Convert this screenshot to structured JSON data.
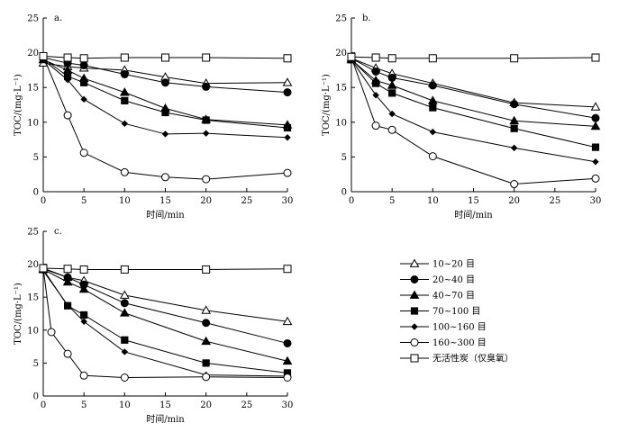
{
  "chart_data": [
    {
      "type": "line",
      "panel_label": "a.",
      "xlabel": "时间/min",
      "ylabel": "TOC/(mg·L⁻¹)",
      "xlim": [
        0,
        30
      ],
      "ylim": [
        0,
        25
      ],
      "xticks": [
        0,
        5,
        10,
        15,
        20,
        25,
        30
      ],
      "yticks": [
        0,
        5,
        10,
        15,
        20,
        25
      ],
      "grid": false,
      "series": [
        {
          "key": "s1",
          "name": "10~20 目",
          "x": [
            0,
            3,
            5,
            10,
            15,
            20,
            30
          ],
          "y": [
            18.5,
            18.0,
            17.8,
            17.5,
            16.5,
            15.6,
            15.7
          ]
        },
        {
          "key": "s2",
          "name": "20~40 目",
          "x": [
            0,
            3,
            5,
            10,
            15,
            20,
            30
          ],
          "y": [
            19.3,
            18.5,
            18.2,
            16.9,
            15.7,
            15.1,
            14.3
          ]
        },
        {
          "key": "s3",
          "name": "40~70 目",
          "x": [
            0,
            3,
            5,
            10,
            15,
            20,
            30
          ],
          "y": [
            19.0,
            17.5,
            16.3,
            14.3,
            12.0,
            10.4,
            9.6
          ]
        },
        {
          "key": "s4",
          "name": "70~100 目",
          "x": [
            0,
            3,
            5,
            10,
            15,
            20,
            30
          ],
          "y": [
            19.2,
            16.6,
            15.7,
            13.1,
            11.4,
            10.3,
            9.2
          ]
        },
        {
          "key": "s5",
          "name": "100~160 目",
          "x": [
            0,
            3,
            5,
            10,
            15,
            20,
            30
          ],
          "y": [
            19.0,
            16.1,
            13.3,
            9.8,
            8.3,
            8.4,
            7.8
          ]
        },
        {
          "key": "s6",
          "name": "160~300 目",
          "x": [
            0,
            3,
            5,
            10,
            15,
            20,
            30
          ],
          "y": [
            19.5,
            11.0,
            5.6,
            2.8,
            2.1,
            1.8,
            2.7
          ]
        },
        {
          "key": "s7",
          "name": "无活性炭（仅臭氧）",
          "x": [
            0,
            3,
            5,
            10,
            15,
            20,
            30
          ],
          "y": [
            19.5,
            19.3,
            19.2,
            19.3,
            19.3,
            19.3,
            19.2
          ]
        }
      ]
    },
    {
      "type": "line",
      "panel_label": "b.",
      "xlabel": "时间/min",
      "ylabel": "TOC/(mg·L⁻¹)",
      "xlim": [
        0,
        30
      ],
      "ylim": [
        0,
        25
      ],
      "xticks": [
        0,
        5,
        10,
        15,
        20,
        25,
        30
      ],
      "yticks": [
        0,
        5,
        10,
        15,
        20,
        25
      ],
      "grid": false,
      "series": [
        {
          "key": "s1",
          "name": "10~20 目",
          "x": [
            0,
            3,
            5,
            10,
            20,
            30
          ],
          "y": [
            19.2,
            17.8,
            17.0,
            15.6,
            12.8,
            12.2
          ]
        },
        {
          "key": "s2",
          "name": "20~40 目",
          "x": [
            0,
            3,
            5,
            10,
            20,
            30
          ],
          "y": [
            19.2,
            17.3,
            16.4,
            15.3,
            12.6,
            10.6
          ]
        },
        {
          "key": "s3",
          "name": "40~70 目",
          "x": [
            0,
            3,
            5,
            10,
            20,
            30
          ],
          "y": [
            19.0,
            16.0,
            15.3,
            13.1,
            10.2,
            9.4
          ]
        },
        {
          "key": "s4",
          "name": "70~100 目",
          "x": [
            0,
            3,
            5,
            10,
            20,
            30
          ],
          "y": [
            19.0,
            15.6,
            14.2,
            12.1,
            9.1,
            6.4
          ]
        },
        {
          "key": "s5",
          "name": "100~160 目",
          "x": [
            0,
            3,
            5,
            10,
            20,
            30
          ],
          "y": [
            19.0,
            13.9,
            11.2,
            8.6,
            6.3,
            4.3
          ]
        },
        {
          "key": "s6",
          "name": "160~300 目",
          "x": [
            0,
            3,
            5,
            10,
            20,
            30
          ],
          "y": [
            19.3,
            9.5,
            8.9,
            5.1,
            1.1,
            1.9
          ]
        },
        {
          "key": "s7",
          "name": "无活性炭（仅臭氧）",
          "x": [
            0,
            3,
            5,
            10,
            20,
            30
          ],
          "y": [
            19.4,
            19.3,
            19.2,
            19.2,
            19.2,
            19.3
          ]
        }
      ]
    },
    {
      "type": "line",
      "panel_label": "c.",
      "xlabel": "时间/min",
      "ylabel": "TOC/(mg·L⁻¹)",
      "xlim": [
        0,
        30
      ],
      "ylim": [
        0,
        25
      ],
      "xticks": [
        0,
        5,
        10,
        15,
        20,
        25,
        30
      ],
      "yticks": [
        0,
        5,
        10,
        15,
        20,
        25
      ],
      "grid": false,
      "series": [
        {
          "key": "s1",
          "name": "10~20 目",
          "x": [
            0,
            3,
            5,
            10,
            20,
            30
          ],
          "y": [
            19.3,
            18.0,
            17.5,
            15.3,
            13.0,
            11.3
          ]
        },
        {
          "key": "s2",
          "name": "20~40 目",
          "x": [
            0,
            3,
            5,
            10,
            20,
            30
          ],
          "y": [
            19.4,
            18.0,
            16.9,
            14.1,
            11.1,
            8.0
          ]
        },
        {
          "key": "s3",
          "name": "40~70 目",
          "x": [
            0,
            3,
            5,
            10,
            20,
            30
          ],
          "y": [
            19.2,
            17.3,
            16.2,
            12.6,
            8.3,
            5.3
          ]
        },
        {
          "key": "s4",
          "name": "70~100 目",
          "x": [
            0,
            3,
            5,
            10,
            20,
            30
          ],
          "y": [
            19.2,
            13.7,
            12.3,
            8.5,
            5.0,
            3.5
          ]
        },
        {
          "key": "s5",
          "name": "100~160 目",
          "x": [
            0,
            3,
            5,
            10,
            20,
            30
          ],
          "y": [
            19.0,
            13.8,
            11.3,
            6.7,
            3.2,
            3.0
          ]
        },
        {
          "key": "s6",
          "name": "160~300 目",
          "x": [
            0,
            1,
            3,
            5,
            10,
            20,
            30
          ],
          "y": [
            19.4,
            9.7,
            6.4,
            3.1,
            2.8,
            2.9,
            2.8
          ]
        },
        {
          "key": "s7",
          "name": "无活性炭（仅臭氧）",
          "x": [
            0,
            3,
            5,
            10,
            20,
            30
          ],
          "y": [
            19.4,
            19.3,
            19.2,
            19.2,
            19.2,
            19.3
          ]
        }
      ]
    }
  ],
  "legend": {
    "placement": "right of panel c",
    "items": [
      {
        "key": "s1",
        "marker": "open-triangle",
        "label": "10~20 目"
      },
      {
        "key": "s2",
        "marker": "filled-circle",
        "label": "20~40 目"
      },
      {
        "key": "s3",
        "marker": "filled-triangle",
        "label": "40~70 目"
      },
      {
        "key": "s4",
        "marker": "filled-square",
        "label": "70~100 目"
      },
      {
        "key": "s5",
        "marker": "filled-diamond",
        "label": "100~160 目"
      },
      {
        "key": "s6",
        "marker": "open-circle",
        "label": "160~300 目"
      },
      {
        "key": "s7",
        "marker": "open-square",
        "label": "无活性炭（仅臭氧）"
      }
    ]
  },
  "colors": {
    "ink": "#000000",
    "background": "#ffffff"
  }
}
